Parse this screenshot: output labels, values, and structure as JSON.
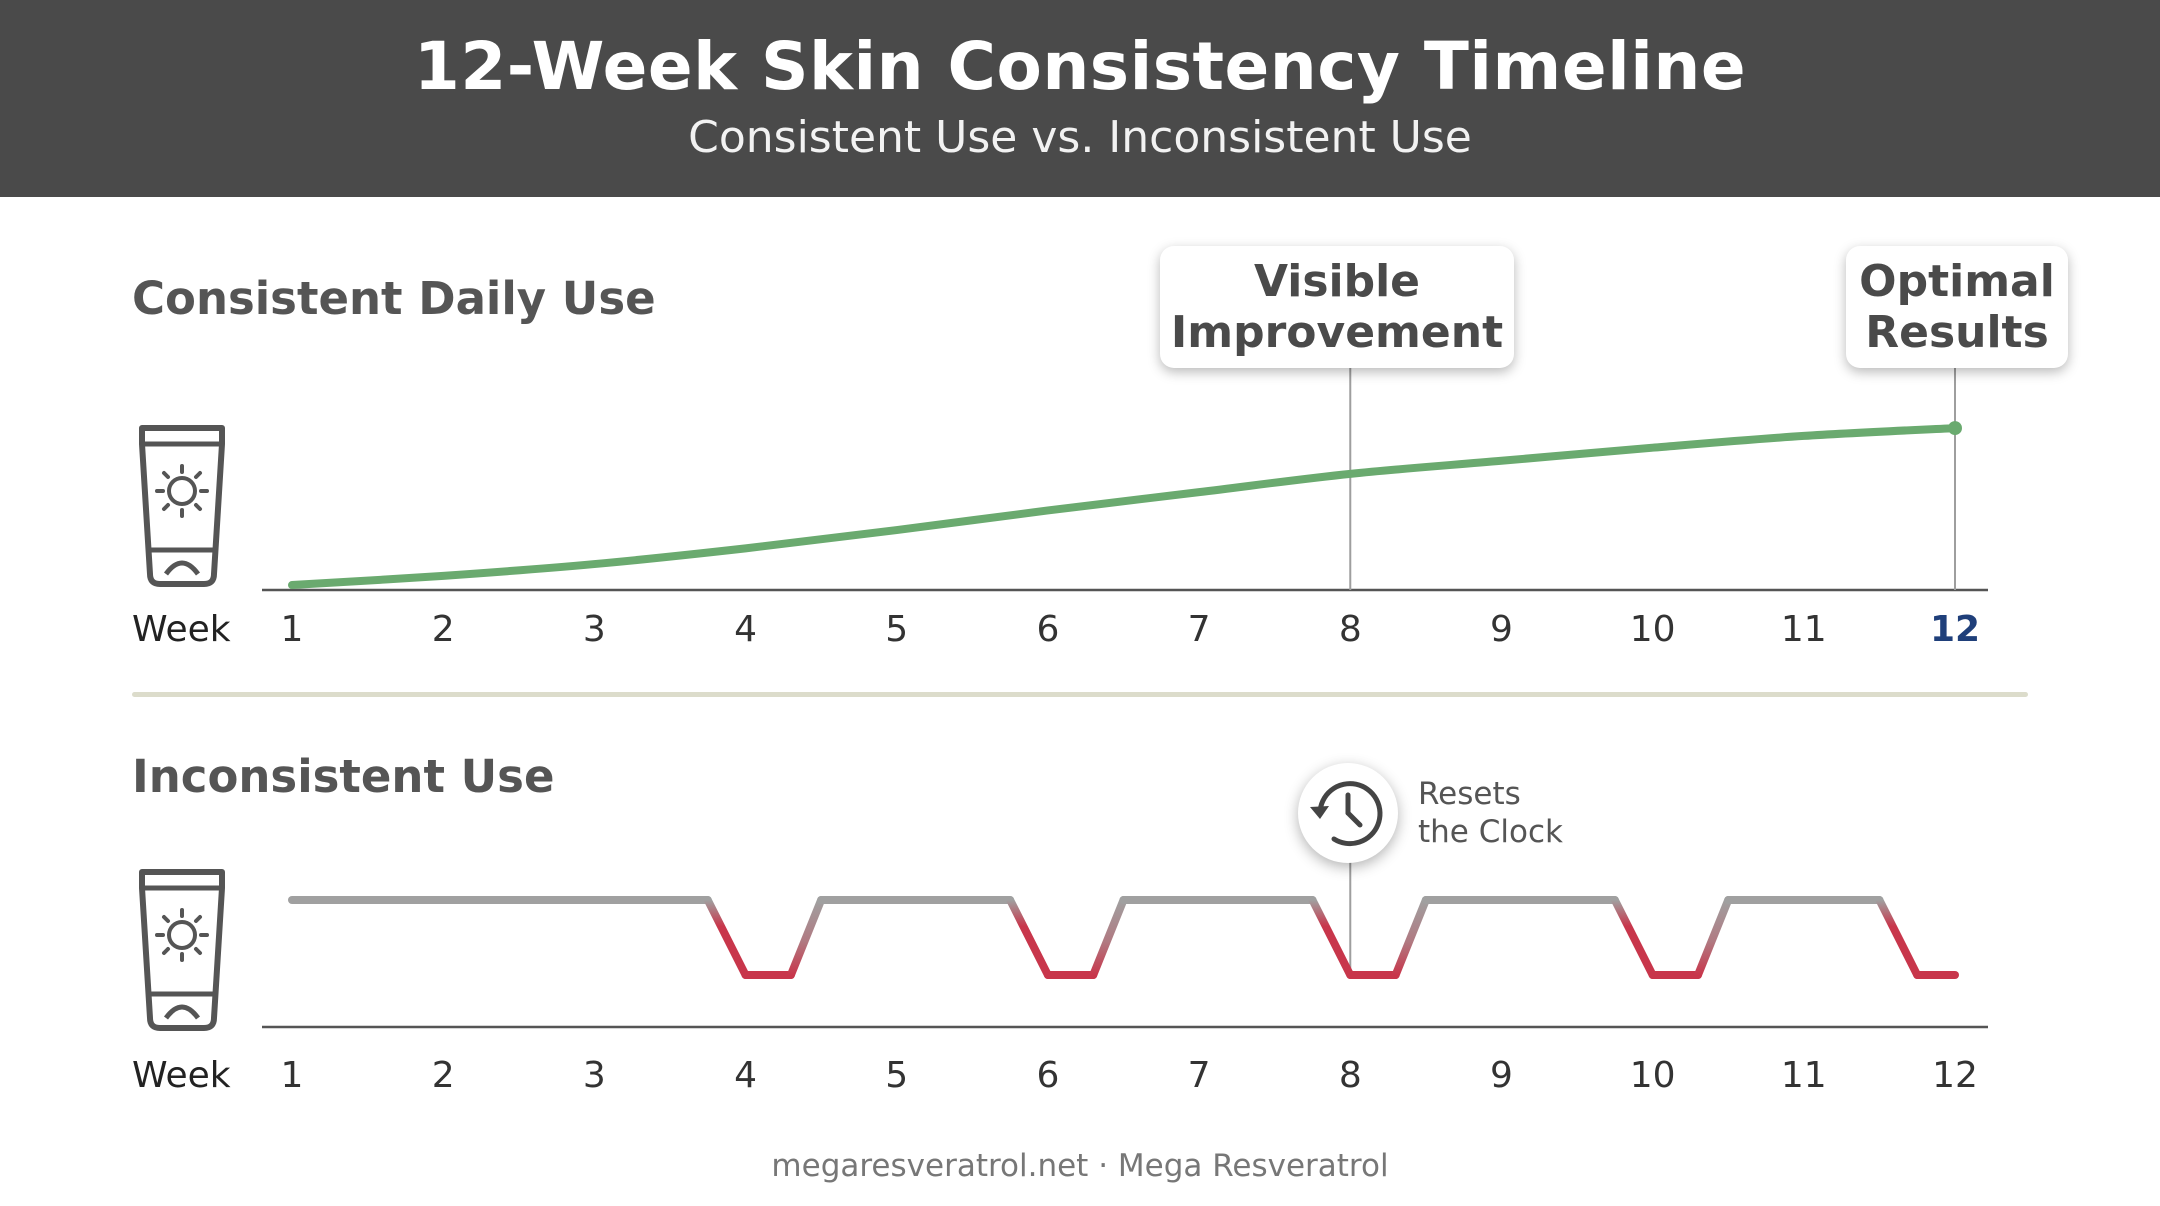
{
  "header": {
    "title": "12-Week Skin Consistency Timeline",
    "subtitle": "Consistent Use vs. Inconsistent Use"
  },
  "footer": "megaresveratrol.net · Mega Resveratrol",
  "colors": {
    "header_bg": "#4a4a4a",
    "consistent_line": "#6aaa6f",
    "inconsistent_line": "#a0a0a0",
    "missed_line": "#c8364b",
    "highlight_tick": "#1f3f7a"
  },
  "icons": {
    "product_icon": "sunscreen-tube-icon",
    "reset_icon": "history-clock-icon"
  },
  "chart_data": [
    {
      "type": "line",
      "title": "Consistent Daily Use",
      "xlabel": "Week",
      "x": [
        1,
        2,
        3,
        4,
        5,
        6,
        7,
        8,
        9,
        10,
        11,
        12
      ],
      "x_tick_labels": [
        "1",
        "2",
        "3",
        "4",
        "5",
        "6",
        "7",
        "8",
        "9",
        "10",
        "11",
        "12"
      ],
      "highlighted_tick": "12",
      "series": [
        {
          "values": [
            0,
            0.07,
            0.16,
            0.28,
            0.42,
            0.57,
            0.71,
            0.85,
            0.95,
            1.05,
            1.14,
            1.2
          ]
        }
      ],
      "ylim": [
        0,
        1.3
      ],
      "annotations": [
        {
          "x": 8,
          "text": [
            "Visible",
            "Improvement"
          ]
        },
        {
          "x": 12,
          "text": [
            "Optimal",
            "Results"
          ]
        }
      ],
      "grid": false
    },
    {
      "type": "line",
      "title": "Inconsistent Use",
      "xlabel": "Week",
      "x_tick_labels": [
        "1",
        "2",
        "3",
        "4",
        "5",
        "6",
        "7",
        "8",
        "9",
        "10",
        "11",
        "12"
      ],
      "levels": {
        "consistent": 1,
        "missed": 0
      },
      "series": [
        {
          "points": [
            [
              1,
              1
            ],
            [
              3.75,
              1
            ],
            [
              4,
              0
            ],
            [
              4.3,
              0
            ],
            [
              4.5,
              1
            ],
            [
              5.75,
              1
            ],
            [
              6,
              0
            ],
            [
              6.3,
              0
            ],
            [
              6.5,
              1
            ],
            [
              7.75,
              1
            ],
            [
              8,
              0
            ],
            [
              8.3,
              0
            ],
            [
              8.5,
              1
            ],
            [
              9.75,
              1
            ],
            [
              10,
              0
            ],
            [
              10.3,
              0
            ],
            [
              10.5,
              1
            ],
            [
              11.5,
              1
            ],
            [
              11.75,
              0
            ],
            [
              12,
              0
            ]
          ]
        }
      ],
      "annotations": [
        {
          "x": 8,
          "text": [
            "Resets",
            "the Clock"
          ]
        }
      ],
      "grid": false
    }
  ]
}
